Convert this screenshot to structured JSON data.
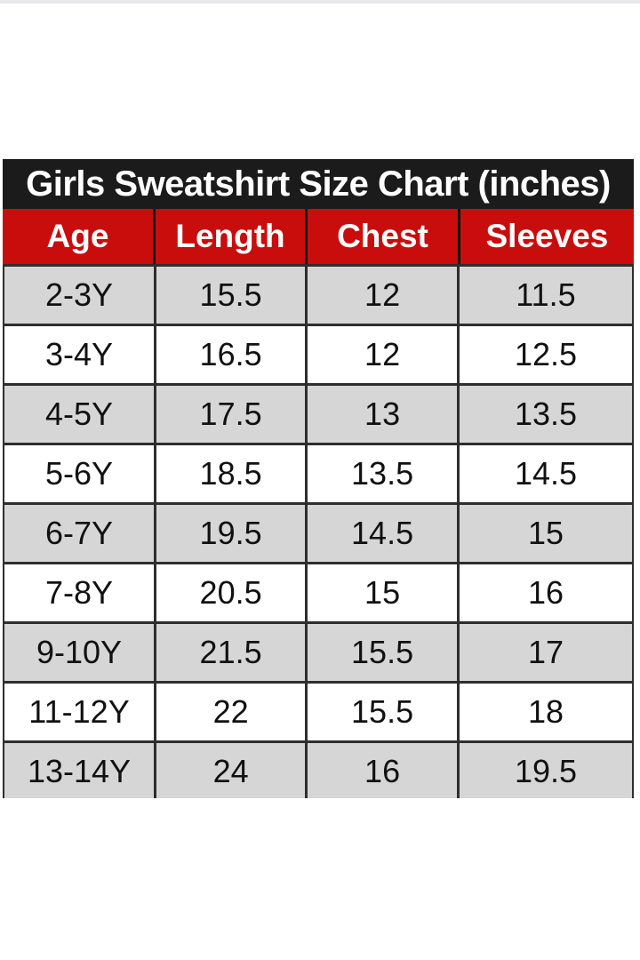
{
  "chart_data": {
    "type": "table",
    "title": "Girls Sweatshirt Size Chart (inches)",
    "columns": [
      "Age",
      "Length",
      "Chest",
      "Sleeves"
    ],
    "rows": [
      [
        "2-3Y",
        "15.5",
        "12",
        "11.5"
      ],
      [
        "3-4Y",
        "16.5",
        "12",
        "12.5"
      ],
      [
        "4-5Y",
        "17.5",
        "13",
        "13.5"
      ],
      [
        "5-6Y",
        "18.5",
        "13.5",
        "14.5"
      ],
      [
        "6-7Y",
        "19.5",
        "14.5",
        "15"
      ],
      [
        "7-8Y",
        "20.5",
        "15",
        "16"
      ],
      [
        "9-10Y",
        "21.5",
        "15.5",
        "17"
      ],
      [
        "11-12Y",
        "22",
        "15.5",
        "18"
      ],
      [
        "13-14Y",
        "24",
        "16",
        "19.5"
      ]
    ]
  },
  "colors": {
    "title_bg": "#1b1b1b",
    "title_text": "#ffffff",
    "header_bg": "#c90d0d",
    "header_text": "#ffffff",
    "row_bg": "#ffffff",
    "row_alt_bg": "#d6d6d6",
    "cell_text": "#111111",
    "border": "#2e2e2e",
    "top_strip": "#e8e8ea"
  }
}
